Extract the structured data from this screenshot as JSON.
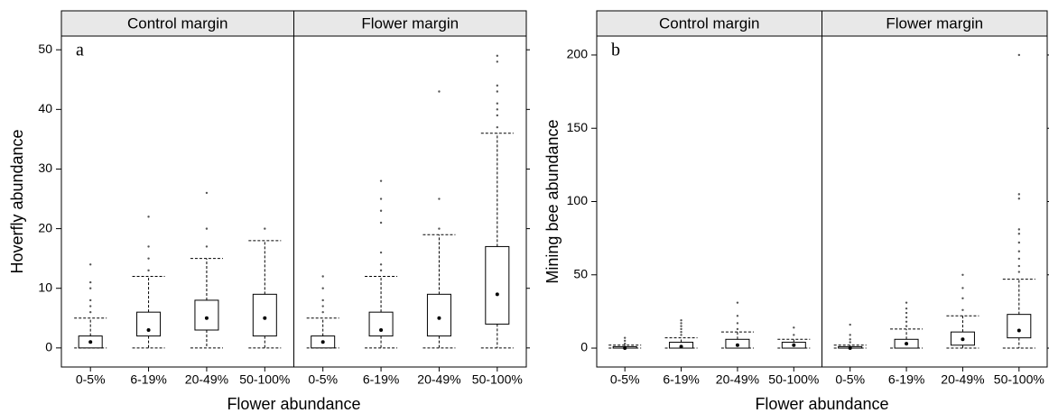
{
  "chart_data": [
    {
      "type": "box",
      "label": "a",
      "ylabel": "Hoverfly abundance",
      "xlabel": "Flower abundance",
      "ylim": [
        -3.2,
        52.3
      ],
      "yticks": [
        0,
        10,
        20,
        30,
        40,
        50
      ],
      "categories": [
        "0-5%",
        "6-19%",
        "20-49%",
        "50-100%"
      ],
      "facets": [
        {
          "title": "Control margin",
          "boxes": [
            {
              "min": 0,
              "q1": 0,
              "median": 1,
              "q3": 2,
              "max": 5,
              "outliers": [
                6,
                7,
                8,
                10,
                11,
                14
              ]
            },
            {
              "min": 0,
              "q1": 2,
              "median": 3,
              "q3": 6,
              "max": 12,
              "outliers": [
                13,
                15,
                17,
                22
              ]
            },
            {
              "min": 0,
              "q1": 3,
              "median": 5,
              "q3": 8,
              "max": 15,
              "outliers": [
                17,
                20,
                26
              ]
            },
            {
              "min": 0,
              "q1": 2,
              "median": 5,
              "q3": 9,
              "max": 18,
              "outliers": [
                20
              ]
            }
          ]
        },
        {
          "title": "Flower margin",
          "boxes": [
            {
              "min": 0,
              "q1": 0,
              "median": 1,
              "q3": 2,
              "max": 5,
              "outliers": [
                6,
                7,
                8,
                10,
                12
              ]
            },
            {
              "min": 0,
              "q1": 2,
              "median": 3,
              "q3": 6,
              "max": 12,
              "outliers": [
                13,
                14,
                16,
                21,
                23,
                25,
                28
              ]
            },
            {
              "min": 0,
              "q1": 2,
              "median": 5,
              "q3": 9,
              "max": 19,
              "outliers": [
                20,
                25,
                43
              ]
            },
            {
              "min": 0,
              "q1": 4,
              "median": 9,
              "q3": 17,
              "max": 36,
              "outliers": [
                37,
                39,
                40,
                41,
                43,
                44,
                48,
                49
              ]
            }
          ]
        }
      ]
    },
    {
      "type": "box",
      "label": "b",
      "ylabel": "Mining bee abundance",
      "xlabel": "Flower abundance",
      "ylim": [
        -12.9,
        212.9
      ],
      "yticks": [
        0,
        50,
        100,
        150,
        200
      ],
      "categories": [
        "0-5%",
        "6-19%",
        "20-49%",
        "50-100%"
      ],
      "facets": [
        {
          "title": "Control margin",
          "boxes": [
            {
              "min": 0,
              "q1": 0,
              "median": 0,
              "q3": 1,
              "max": 2,
              "outliers": [
                3,
                5,
                7
              ]
            },
            {
              "min": 0,
              "q1": 0,
              "median": 1,
              "q3": 4,
              "max": 7,
              "outliers": [
                9,
                11,
                13,
                15,
                17,
                19
              ]
            },
            {
              "min": 0,
              "q1": 0,
              "median": 2,
              "q3": 6,
              "max": 11,
              "outliers": [
                13,
                17,
                22,
                31
              ]
            },
            {
              "min": 0,
              "q1": 0,
              "median": 2,
              "q3": 4,
              "max": 6,
              "outliers": [
                9,
                14
              ]
            }
          ]
        },
        {
          "title": "Flower margin",
          "boxes": [
            {
              "min": 0,
              "q1": 0,
              "median": 0,
              "q3": 1,
              "max": 2,
              "outliers": [
                4,
                6,
                9,
                16
              ]
            },
            {
              "min": 0,
              "q1": 0,
              "median": 3,
              "q3": 6,
              "max": 13,
              "outliers": [
                15,
                18,
                21,
                24,
                27,
                31
              ]
            },
            {
              "min": 0,
              "q1": 2,
              "median": 6,
              "q3": 11,
              "max": 22,
              "outliers": [
                26,
                34,
                41,
                50
              ]
            },
            {
              "min": 0,
              "q1": 7,
              "median": 12,
              "q3": 23,
              "max": 47,
              "outliers": [
                52,
                56,
                61,
                66,
                72,
                78,
                81,
                102,
                105,
                200
              ]
            }
          ]
        }
      ]
    }
  ]
}
